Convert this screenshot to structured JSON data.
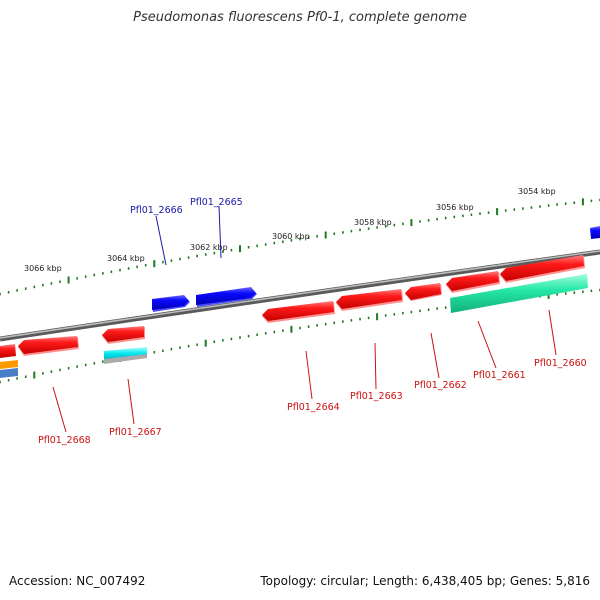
{
  "title": "Pseudomonas fluorescens Pf0-1, complete genome",
  "accession": "Accession: NC_007492",
  "summary": "Topology: circular; Length: 6,438,405 bp; Genes: 5,816",
  "colors": {
    "backbone": "#808080",
    "ticks": "#1e7a1e",
    "forward_gene": "#0000dd",
    "reverse_gene": "#ee1111",
    "teal_gene": "#22e0a0",
    "cyan_gene": "#00e5ee",
    "forward_label": "#1a1aaa",
    "reverse_label": "#cc1111"
  },
  "kbp_labels": [
    "3054 kbp",
    "3056 kbp",
    "3058 kbp",
    "3060 kbp",
    "3062 kbp",
    "3064 kbp",
    "3066 kbp"
  ],
  "forward_genes": [
    "Pfl01_2665",
    "Pfl01_2666"
  ],
  "reverse_genes": [
    "Pfl01_2660",
    "Pfl01_2661",
    "Pfl01_2662",
    "Pfl01_2663",
    "Pfl01_2664",
    "Pfl01_2667",
    "Pfl01_2668"
  ]
}
